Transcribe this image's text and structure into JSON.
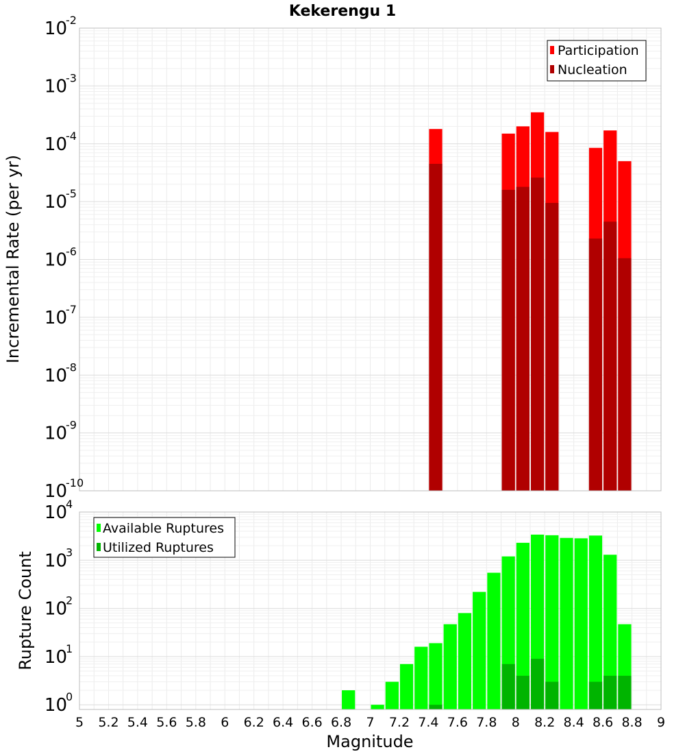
{
  "chart_data": [
    {
      "type": "bar",
      "title": "Kekerengu 1",
      "xlabel": "",
      "ylabel": "Incremental Rate (per yr)",
      "yscale": "log",
      "xlim": [
        5,
        9
      ],
      "ylim": [
        1e-10,
        0.01
      ],
      "bar_width": 0.1,
      "legend_position": "top-right",
      "grid": true,
      "colors": {
        "Participation": "#ff0000",
        "Nucleation": "#b00000"
      },
      "series": [
        {
          "name": "Participation",
          "x": [
            7.45,
            7.95,
            8.05,
            8.15,
            8.25,
            8.55,
            8.65,
            8.75
          ],
          "values": [
            0.00018,
            0.00015,
            0.0002,
            0.00035,
            0.00016,
            8.5e-05,
            0.00017,
            5e-05
          ]
        },
        {
          "name": "Nucleation",
          "x": [
            7.45,
            7.95,
            8.05,
            8.15,
            8.25,
            8.55,
            8.65,
            8.75
          ],
          "values": [
            4.5e-05,
            1.6e-05,
            1.8e-05,
            2.6e-05,
            9.5e-06,
            2.3e-06,
            4.5e-06,
            1.05e-06
          ]
        }
      ]
    },
    {
      "type": "bar",
      "title": "",
      "xlabel": "Magnitude",
      "ylabel": "Rupture Count",
      "yscale": "log",
      "xlim": [
        5,
        9
      ],
      "ylim": [
        0.8,
        10000
      ],
      "bar_width": 0.1,
      "legend_position": "top-left",
      "grid": true,
      "colors": {
        "Available Ruptures": "#00ff00",
        "Utilized Ruptures": "#00b400"
      },
      "x_ticks": [
        "5",
        "5.2",
        "5.4",
        "5.6",
        "5.8",
        "6",
        "6.2",
        "6.4",
        "6.6",
        "6.8",
        "7",
        "7.2",
        "7.4",
        "7.6",
        "7.8",
        "8",
        "8.2",
        "8.4",
        "8.6",
        "8.8",
        "9"
      ],
      "series": [
        {
          "name": "Available Ruptures",
          "x": [
            6.85,
            7.05,
            7.15,
            7.25,
            7.35,
            7.45,
            7.55,
            7.65,
            7.75,
            7.85,
            7.95,
            8.05,
            8.15,
            8.25,
            8.35,
            8.45,
            8.55,
            8.65,
            8.75
          ],
          "values": [
            2,
            1,
            3,
            7,
            16,
            19,
            47,
            80,
            220,
            550,
            1200,
            2300,
            3400,
            3300,
            2900,
            2850,
            3250,
            1300,
            47
          ]
        },
        {
          "name": "Utilized Ruptures",
          "x": [
            7.45,
            7.95,
            8.05,
            8.15,
            8.25,
            8.55,
            8.65,
            8.75
          ],
          "values": [
            1,
            7,
            4,
            9,
            3,
            3,
            4,
            4
          ]
        }
      ]
    }
  ]
}
